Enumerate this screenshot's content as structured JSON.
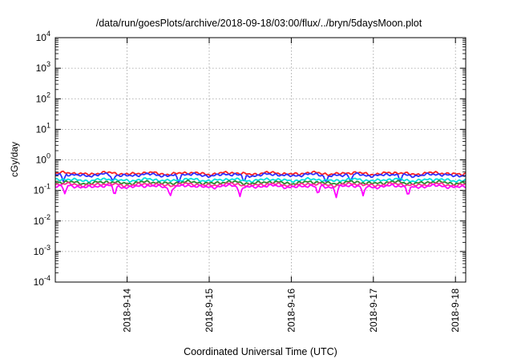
{
  "chart_data": {
    "type": "line",
    "title": "/data/run/goesPlots/archive/2018-09-18/03:00/flux/../bryn/5daysMoon.plot",
    "xlabel": "Coordinated Universal Time (UTC)",
    "ylabel": "cGy/day",
    "y_scale": "log",
    "ylim": [
      0.0001,
      10000
    ],
    "xlim": [
      "2018-09-13 03:00",
      "2018-09-18 03:00"
    ],
    "grid": true,
    "x_ticks": [
      "2018-9-14",
      "2018-9-15",
      "2018-9-16",
      "2018-9-17",
      "2018-9-18"
    ],
    "y_ticks": [
      {
        "base": "10",
        "exp": "-4"
      },
      {
        "base": "10",
        "exp": "-3"
      },
      {
        "base": "10",
        "exp": "-2"
      },
      {
        "base": "10",
        "exp": "-1"
      },
      {
        "base": "10",
        "exp": "0"
      },
      {
        "base": "10",
        "exp": "1"
      },
      {
        "base": "10",
        "exp": "2"
      },
      {
        "base": "10",
        "exp": "3"
      },
      {
        "base": "10",
        "exp": "4"
      }
    ],
    "series": [
      {
        "color": "#ff2020",
        "level": 0.36,
        "dips": [],
        "dip_depth": 0
      },
      {
        "color": "#3030ff",
        "level": 0.32,
        "dips": [
          0.1,
          0.7,
          1.5,
          2.3,
          3.3,
          3.6,
          4.2
        ],
        "dip_depth": 0.45
      },
      {
        "color": "#00e0e0",
        "level": 0.22,
        "dips": [],
        "dip_depth": 0
      },
      {
        "color": "#2e8b2e",
        "level": 0.18,
        "dips": [],
        "dip_depth": 0
      },
      {
        "color": "#ff3090",
        "level": 0.155,
        "dips": [],
        "dip_depth": 0
      },
      {
        "color": "#ff00ff",
        "level": 0.135,
        "dips": [
          0.12,
          0.72,
          1.4,
          2.25,
          3.2,
          3.42,
          3.75,
          4.3
        ],
        "dip_depth": 0.55
      }
    ]
  }
}
